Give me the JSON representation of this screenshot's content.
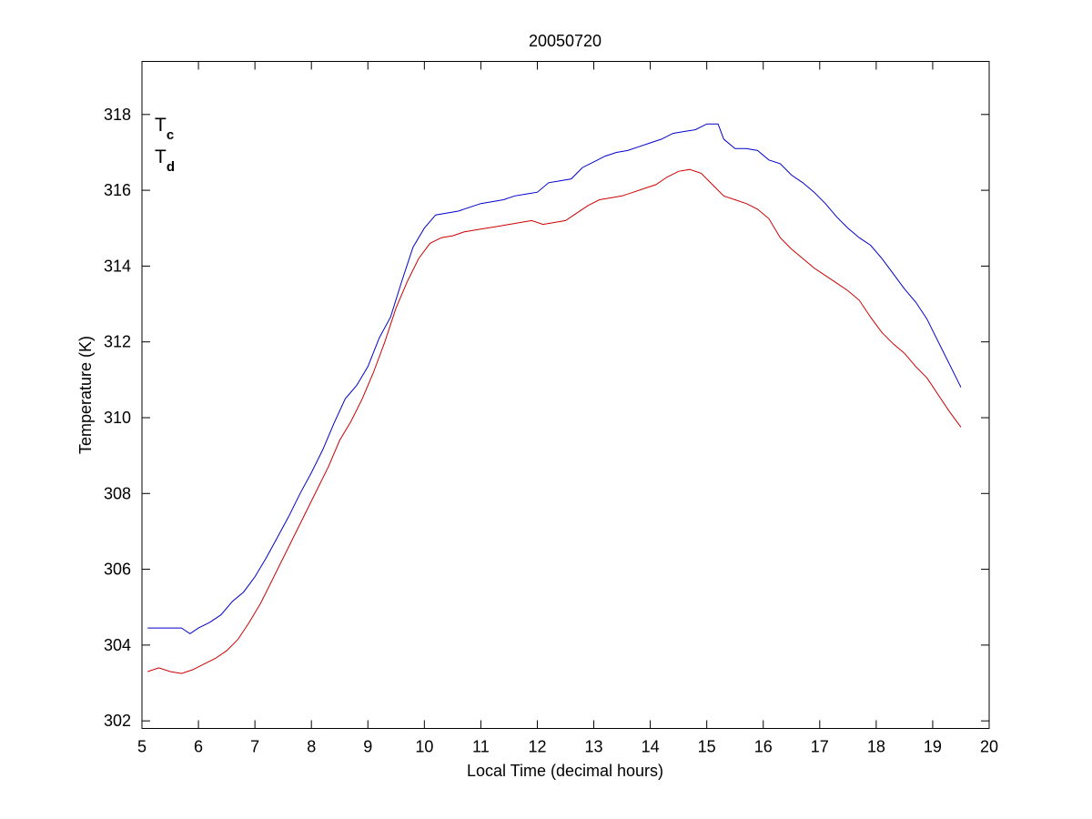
{
  "chart_data": {
    "type": "line",
    "title": "20050720",
    "xlabel": "Local Time (decimal hours)",
    "ylabel": "Temperature (K)",
    "xlim": [
      5,
      20
    ],
    "ylim": [
      301.8,
      319.4
    ],
    "xticks": [
      5,
      6,
      7,
      8,
      9,
      10,
      11,
      12,
      13,
      14,
      15,
      16,
      17,
      18,
      19,
      20
    ],
    "yticks": [
      302,
      304,
      306,
      308,
      310,
      312,
      314,
      316,
      318
    ],
    "grid": false,
    "legend_position": "top-left",
    "series": [
      {
        "name": "Tc",
        "legend_main": "T",
        "legend_sub": "c",
        "color": "#0000cc",
        "x": [
          5.1,
          5.5,
          5.7,
          5.85,
          6.0,
          6.2,
          6.4,
          6.6,
          6.8,
          7.0,
          7.2,
          7.4,
          7.6,
          7.8,
          8.0,
          8.2,
          8.4,
          8.6,
          8.8,
          9.0,
          9.2,
          9.4,
          9.6,
          9.8,
          10.0,
          10.2,
          10.4,
          10.6,
          10.8,
          11.0,
          11.2,
          11.4,
          11.6,
          11.8,
          12.0,
          12.2,
          12.4,
          12.6,
          12.8,
          13.0,
          13.2,
          13.4,
          13.6,
          13.8,
          14.0,
          14.2,
          14.4,
          14.6,
          14.8,
          15.0,
          15.2,
          15.3,
          15.5,
          15.7,
          15.9,
          16.1,
          16.3,
          16.5,
          16.7,
          16.9,
          17.1,
          17.3,
          17.5,
          17.7,
          17.9,
          18.1,
          18.3,
          18.5,
          18.7,
          18.9,
          19.1,
          19.3,
          19.5
        ],
        "y": [
          304.45,
          304.45,
          304.45,
          304.3,
          304.45,
          304.6,
          304.8,
          305.15,
          305.4,
          305.8,
          306.3,
          306.85,
          307.4,
          308.0,
          308.55,
          309.15,
          309.85,
          310.5,
          310.85,
          311.35,
          312.1,
          312.65,
          313.6,
          314.5,
          315.0,
          315.35,
          315.4,
          315.45,
          315.55,
          315.65,
          315.7,
          315.75,
          315.85,
          315.9,
          315.95,
          316.2,
          316.25,
          316.3,
          316.6,
          316.75,
          316.9,
          317.0,
          317.05,
          317.15,
          317.25,
          317.35,
          317.5,
          317.55,
          317.6,
          317.75,
          317.75,
          317.35,
          317.1,
          317.1,
          317.05,
          316.8,
          316.7,
          316.4,
          316.2,
          315.95,
          315.65,
          315.3,
          315.0,
          314.75,
          314.55,
          314.2,
          313.8,
          313.4,
          313.05,
          312.6,
          312.0,
          311.4,
          310.8
        ]
      },
      {
        "name": "Td",
        "legend_main": "T",
        "legend_sub": "d",
        "color": "#cc0000",
        "x": [
          5.1,
          5.3,
          5.5,
          5.7,
          5.9,
          6.1,
          6.3,
          6.5,
          6.7,
          6.9,
          7.1,
          7.3,
          7.5,
          7.7,
          7.9,
          8.1,
          8.3,
          8.5,
          8.7,
          8.9,
          9.1,
          9.3,
          9.5,
          9.7,
          9.9,
          10.1,
          10.3,
          10.5,
          10.7,
          10.9,
          11.1,
          11.3,
          11.5,
          11.7,
          11.9,
          12.1,
          12.3,
          12.5,
          12.7,
          12.9,
          13.1,
          13.3,
          13.5,
          13.7,
          13.9,
          14.1,
          14.3,
          14.5,
          14.7,
          14.9,
          15.1,
          15.3,
          15.5,
          15.7,
          15.9,
          16.1,
          16.3,
          16.5,
          16.7,
          16.9,
          17.1,
          17.3,
          17.5,
          17.7,
          17.9,
          18.1,
          18.3,
          18.5,
          18.7,
          18.9,
          19.1,
          19.3,
          19.5
        ],
        "y": [
          303.3,
          303.4,
          303.3,
          303.25,
          303.35,
          303.5,
          303.65,
          303.85,
          304.15,
          304.6,
          305.1,
          305.7,
          306.3,
          306.9,
          307.5,
          308.1,
          308.7,
          309.4,
          309.9,
          310.5,
          311.2,
          312.0,
          312.9,
          313.6,
          314.2,
          314.6,
          314.75,
          314.8,
          314.9,
          314.95,
          315.0,
          315.05,
          315.1,
          315.15,
          315.2,
          315.1,
          315.15,
          315.2,
          315.4,
          315.6,
          315.75,
          315.8,
          315.85,
          315.95,
          316.05,
          316.15,
          316.35,
          316.5,
          316.55,
          316.45,
          316.15,
          315.85,
          315.75,
          315.65,
          315.5,
          315.25,
          314.75,
          314.45,
          314.2,
          313.95,
          313.75,
          313.55,
          313.35,
          313.1,
          312.65,
          312.25,
          311.95,
          311.7,
          311.35,
          311.05,
          310.6,
          310.15,
          309.75
        ]
      }
    ]
  }
}
